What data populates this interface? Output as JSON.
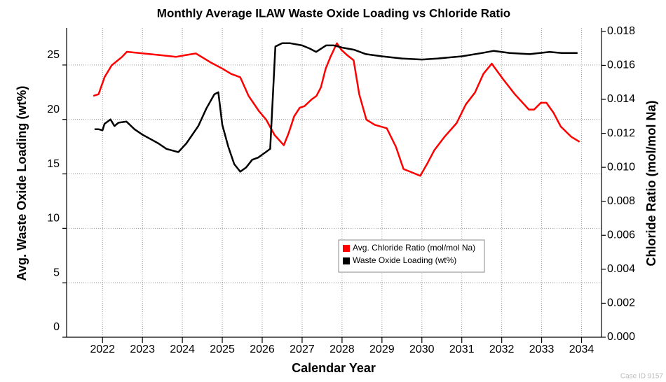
{
  "chart_data": {
    "type": "line",
    "title": "Monthly Average ILAW Waste Oxide Loading vs Chloride Ratio",
    "xlabel": "Calendar Year",
    "ylabel": "Avg. Waste Oxide Loading (wt%)",
    "y2label": "Chloride Ratio (mol/mol Na)",
    "footnote": "Case ID 9157",
    "xlim": [
      2021.1,
      2034.5
    ],
    "xticks": [
      2022,
      2023,
      2024,
      2025,
      2026,
      2027,
      2028,
      2029,
      2030,
      2031,
      2032,
      2033,
      2034
    ],
    "ylim": [
      0,
      28.4
    ],
    "yticks": [
      0,
      5,
      10,
      15,
      20,
      25
    ],
    "y2lim": [
      0,
      0.0182
    ],
    "y2ticks": [
      {
        "value": 0,
        "label": "0.000"
      },
      {
        "value": 0.002,
        "label": "0.002"
      },
      {
        "value": 0.004,
        "label": "0.004"
      },
      {
        "value": 0.006,
        "label": "0.006"
      },
      {
        "value": 0.008,
        "label": "0.008"
      },
      {
        "value": 0.01,
        "label": "0.010"
      },
      {
        "value": 0.012,
        "label": "0.012"
      },
      {
        "value": 0.014,
        "label": "0.014"
      },
      {
        "value": 0.016,
        "label": "0.016"
      },
      {
        "value": 0.018,
        "label": "0.018"
      }
    ],
    "grid": true,
    "legend": "center",
    "series": [
      {
        "name": "Avg. Chloride Ratio (mol/mol Na)",
        "color": "#ff0000",
        "axis": "y2",
        "x": [
          2021.77,
          2021.9,
          2022.05,
          2022.23,
          2022.49,
          2022.61,
          2023.02,
          2023.46,
          2023.84,
          2024.07,
          2024.34,
          2024.69,
          2025.01,
          2025.22,
          2025.45,
          2025.66,
          2025.92,
          2026.1,
          2026.31,
          2026.54,
          2026.66,
          2026.8,
          2026.94,
          2027.06,
          2027.24,
          2027.36,
          2027.47,
          2027.59,
          2027.71,
          2027.87,
          2027.99,
          2028.13,
          2028.29,
          2028.43,
          2028.61,
          2028.82,
          2029.12,
          2029.35,
          2029.54,
          2029.75,
          2029.96,
          2030.13,
          2030.31,
          2030.57,
          2030.87,
          2031.1,
          2031.33,
          2031.54,
          2031.75,
          2032.03,
          2032.33,
          2032.68,
          2032.81,
          2032.98,
          2033.12,
          2033.3,
          2033.48,
          2033.74,
          2033.95
        ],
        "values": [
          0.0142,
          0.0143,
          0.0153,
          0.016,
          0.0165,
          0.0168,
          0.0167,
          0.0166,
          0.0165,
          0.0166,
          0.0167,
          0.0162,
          0.0158,
          0.0155,
          0.0153,
          0.0142,
          0.0133,
          0.0128,
          0.0119,
          0.0113,
          0.012,
          0.013,
          0.0135,
          0.0136,
          0.014,
          0.0142,
          0.0147,
          0.0158,
          0.0165,
          0.0173,
          0.0169,
          0.0166,
          0.0163,
          0.0143,
          0.0128,
          0.0125,
          0.0123,
          0.0112,
          0.0099,
          0.0097,
          0.0095,
          0.0102,
          0.011,
          0.0118,
          0.0126,
          0.0137,
          0.0144,
          0.0155,
          0.0161,
          0.0152,
          0.0143,
          0.0134,
          0.0134,
          0.0138,
          0.0138,
          0.0132,
          0.0124,
          0.0118,
          0.0115
        ]
      },
      {
        "name": "Waste Oxide Loading (wt%)",
        "color": "#000000",
        "axis": "y",
        "x": [
          2021.8,
          2021.9,
          2022.0,
          2022.05,
          2022.2,
          2022.3,
          2022.4,
          2022.6,
          2022.8,
          2023.0,
          2023.2,
          2023.4,
          2023.6,
          2023.9,
          2024.1,
          2024.4,
          2024.6,
          2024.8,
          2024.9,
          2025.0,
          2025.15,
          2025.3,
          2025.45,
          2025.6,
          2025.75,
          2025.9,
          2026.05,
          2026.2,
          2026.33,
          2026.5,
          2026.7,
          2027.0,
          2027.2,
          2027.35,
          2027.6,
          2027.8,
          2028.0,
          2028.3,
          2028.6,
          2029.0,
          2029.5,
          2030.0,
          2030.4,
          2031.0,
          2031.5,
          2031.8,
          2032.2,
          2032.7,
          2033.2,
          2033.5,
          2033.9
        ],
        "values": [
          19.1,
          19.1,
          19.0,
          19.6,
          20.0,
          19.4,
          19.7,
          19.8,
          19.1,
          18.6,
          18.2,
          17.8,
          17.3,
          17.0,
          17.8,
          19.4,
          21.0,
          22.3,
          22.5,
          19.5,
          17.5,
          15.9,
          15.2,
          15.6,
          16.3,
          16.5,
          16.9,
          17.3,
          26.7,
          27.0,
          27.0,
          26.8,
          26.5,
          26.2,
          26.8,
          26.8,
          26.6,
          26.4,
          26.0,
          25.8,
          25.6,
          25.5,
          25.6,
          25.8,
          26.1,
          26.3,
          26.1,
          26.0,
          26.2,
          26.1,
          26.1
        ]
      }
    ]
  }
}
